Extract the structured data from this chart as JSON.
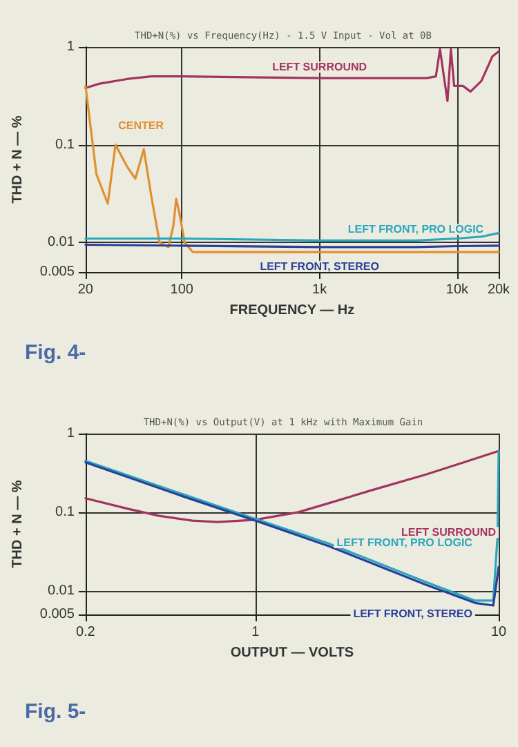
{
  "chart_data": [
    {
      "type": "line",
      "title": "THD+N(%) vs Frequency(Hz) - 1.5 V Input - Vol at 0B",
      "xlabel": "FREQUENCY — Hz",
      "ylabel": "THD + N — %",
      "log": "xy",
      "grid": true,
      "legend": false,
      "marker": "none",
      "line_style": "solid",
      "xlim": [
        20,
        20000
      ],
      "xticks": [
        20,
        100,
        {
          "value": 1000,
          "label": "1k"
        },
        {
          "value": 10000,
          "label": "10k"
        },
        {
          "value": 20000,
          "label": "20k"
        }
      ],
      "ylim": [
        0.005,
        1
      ],
      "yticks": [
        0.005,
        0.01,
        0.1,
        1
      ],
      "annotations": [
        "Fig. 4-"
      ],
      "series": [
        {
          "name": "LEFT SURROUND",
          "color": "#a3345f",
          "x": [
            20,
            25,
            40,
            60,
            100,
            300,
            1000,
            3000,
            6000,
            7000,
            7500,
            8000,
            8500,
            9000,
            9500,
            11000,
            12500,
            15000,
            18000,
            20000
          ],
          "values": [
            0.38,
            0.42,
            0.47,
            0.5,
            0.5,
            0.49,
            0.48,
            0.48,
            0.48,
            0.5,
            0.95,
            0.5,
            0.28,
            0.95,
            0.4,
            0.4,
            0.35,
            0.45,
            0.8,
            0.9
          ]
        },
        {
          "name": "CENTER",
          "color": "#e0902e",
          "x": [
            20,
            24,
            29,
            33,
            40,
            46,
            53,
            60,
            69,
            80,
            87,
            91,
            96,
            105,
            120,
            200,
            1000,
            10000,
            20000
          ],
          "values": [
            0.4,
            0.05,
            0.025,
            0.1,
            0.06,
            0.045,
            0.09,
            0.03,
            0.01,
            0.009,
            0.015,
            0.028,
            0.02,
            0.01,
            0.008,
            0.008,
            0.008,
            0.008,
            0.008
          ]
        },
        {
          "name": "LEFT FRONT, PRO LOGIC",
          "color": "#2ba7bb",
          "x": [
            20,
            100,
            1000,
            5000,
            10000,
            15000,
            20000
          ],
          "values": [
            0.011,
            0.011,
            0.0105,
            0.0105,
            0.011,
            0.0115,
            0.0125
          ]
        },
        {
          "name": "LEFT FRONT, STEREO",
          "color": "#2a3f9a",
          "x": [
            20,
            100,
            1000,
            5000,
            10000,
            20000
          ],
          "values": [
            0.0095,
            0.0093,
            0.009,
            0.009,
            0.0092,
            0.0093
          ]
        }
      ]
    },
    {
      "type": "line",
      "title": "THD+N(%) vs Output(V) at 1 kHz with Maximum Gain",
      "xlabel": "OUTPUT — VOLTS",
      "ylabel": "THD + N — %",
      "log": "xy",
      "grid": true,
      "legend": false,
      "marker": "none",
      "line_style": "solid",
      "xlim": [
        0.2,
        10
      ],
      "xticks": [
        0.2,
        1,
        10
      ],
      "ylim": [
        0.005,
        1
      ],
      "yticks": [
        0.005,
        0.01,
        0.1,
        1
      ],
      "annotations": [
        "Fig. 5-"
      ],
      "series": [
        {
          "name": "LEFT SURROUND",
          "color": "#a3345f",
          "x": [
            0.2,
            0.3,
            0.4,
            0.55,
            0.7,
            1,
            1.5,
            2,
            3,
            5,
            7,
            10
          ],
          "values": [
            0.15,
            0.11,
            0.09,
            0.078,
            0.075,
            0.08,
            0.1,
            0.13,
            0.19,
            0.3,
            0.42,
            0.6
          ]
        },
        {
          "name": "LEFT FRONT, PRO LOGIC",
          "color": "#2ba7bb",
          "x": [
            0.2,
            0.5,
            1,
            2,
            5,
            8,
            9.5,
            9.9,
            10
          ],
          "values": [
            0.45,
            0.17,
            0.082,
            0.04,
            0.013,
            0.0075,
            0.0075,
            0.05,
            0.6
          ]
        },
        {
          "name": "LEFT FRONT, STEREO",
          "color": "#2a3f9a",
          "x": [
            0.2,
            0.5,
            1,
            2,
            5,
            8,
            9.5,
            10
          ],
          "values": [
            0.43,
            0.16,
            0.078,
            0.037,
            0.012,
            0.007,
            0.0065,
            0.02
          ]
        }
      ]
    }
  ]
}
